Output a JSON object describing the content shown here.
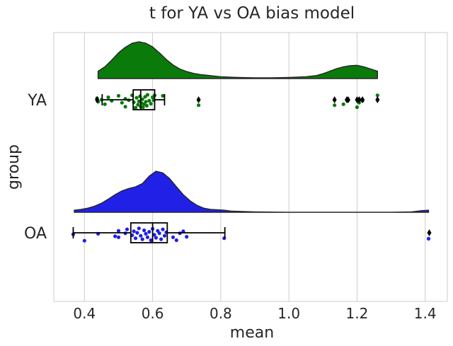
{
  "chart_data": {
    "type": "raincloud",
    "title": "t for YA vs OA bias model",
    "xlabel": "mean",
    "ylabel": "group",
    "xlim": [
      0.31,
      1.465
    ],
    "xticks": [
      0.4,
      0.6,
      0.8,
      1.0,
      1.2,
      1.4
    ],
    "xtick_labels": [
      "0.4",
      "0.6",
      "0.8",
      "1.0",
      "1.2",
      "1.4"
    ],
    "grid": "vertical",
    "groups": [
      {
        "name": "YA",
        "color": "#0a7a0a",
        "density_x": [
          0.44,
          0.46,
          0.48,
          0.5,
          0.52,
          0.54,
          0.56,
          0.58,
          0.6,
          0.62,
          0.64,
          0.66,
          0.68,
          0.7,
          0.72,
          0.74,
          0.76,
          0.78,
          0.8,
          0.85,
          0.9,
          0.95,
          1.0,
          1.05,
          1.08,
          1.1,
          1.12,
          1.14,
          1.16,
          1.18,
          1.2,
          1.22,
          1.24,
          1.26
        ],
        "density_y": [
          0.2,
          0.32,
          0.5,
          0.7,
          0.85,
          0.96,
          1.0,
          0.96,
          0.86,
          0.7,
          0.52,
          0.37,
          0.26,
          0.19,
          0.14,
          0.11,
          0.09,
          0.07,
          0.05,
          0.03,
          0.02,
          0.02,
          0.03,
          0.05,
          0.08,
          0.13,
          0.2,
          0.27,
          0.32,
          0.35,
          0.36,
          0.32,
          0.26,
          0.2
        ],
        "box": {
          "whisker_low": 0.452,
          "q1": 0.543,
          "median": 0.565,
          "q3": 0.606,
          "whisker_high": 0.635
        },
        "outliers": [
          0.437,
          0.735,
          1.134,
          1.17,
          1.174,
          1.2,
          1.206,
          1.216,
          1.26
        ],
        "points": [
          {
            "x": 0.437,
            "j": -0.3
          },
          {
            "x": 0.44,
            "j": 0.4
          },
          {
            "x": 0.45,
            "j": 0.0
          },
          {
            "x": 0.46,
            "j": 0.9
          },
          {
            "x": 0.47,
            "j": -0.5
          },
          {
            "x": 0.48,
            "j": 0.2
          },
          {
            "x": 0.5,
            "j": -0.8
          },
          {
            "x": 0.51,
            "j": 0.6
          },
          {
            "x": 0.52,
            "j": -0.2
          },
          {
            "x": 0.52,
            "j": 1.4
          },
          {
            "x": 0.53,
            "j": 0.1
          },
          {
            "x": 0.54,
            "j": -0.9
          },
          {
            "x": 0.545,
            "j": 0.5
          },
          {
            "x": 0.55,
            "j": 1.6
          },
          {
            "x": 0.553,
            "j": -0.4
          },
          {
            "x": 0.557,
            "j": 1.0
          },
          {
            "x": 0.56,
            "j": 0.3
          },
          {
            "x": 0.563,
            "j": -0.7
          },
          {
            "x": 0.565,
            "j": 1.4
          },
          {
            "x": 0.568,
            "j": 0.7
          },
          {
            "x": 0.57,
            "j": -0.1
          },
          {
            "x": 0.572,
            "j": 1.5
          },
          {
            "x": 0.575,
            "j": 0.9
          },
          {
            "x": 0.578,
            "j": -0.6
          },
          {
            "x": 0.58,
            "j": 0.4
          },
          {
            "x": 0.583,
            "j": 1.2
          },
          {
            "x": 0.585,
            "j": -1.0
          },
          {
            "x": 0.59,
            "j": 0.2
          },
          {
            "x": 0.595,
            "j": 0.8
          },
          {
            "x": 0.6,
            "j": -0.5
          },
          {
            "x": 0.603,
            "j": 0.1
          },
          {
            "x": 0.606,
            "j": -0.9
          },
          {
            "x": 0.63,
            "j": -0.8
          },
          {
            "x": 0.735,
            "j": 1.1
          },
          {
            "x": 0.735,
            "j": 0.0
          },
          {
            "x": 1.134,
            "j": 1.1
          },
          {
            "x": 1.16,
            "j": 0.9
          },
          {
            "x": 1.17,
            "j": 0.0
          },
          {
            "x": 1.174,
            "j": 0.1
          },
          {
            "x": 1.2,
            "j": 1.5
          },
          {
            "x": 1.206,
            "j": 0.6
          },
          {
            "x": 1.21,
            "j": 0.0
          },
          {
            "x": 1.216,
            "j": 0.2
          },
          {
            "x": 1.26,
            "j": -0.9
          }
        ]
      },
      {
        "name": "OA",
        "color": "#2020e6",
        "density_x": [
          0.37,
          0.39,
          0.41,
          0.43,
          0.45,
          0.47,
          0.49,
          0.51,
          0.53,
          0.55,
          0.57,
          0.59,
          0.61,
          0.63,
          0.65,
          0.67,
          0.69,
          0.71,
          0.73,
          0.75,
          0.77,
          0.79,
          0.81,
          0.83,
          0.86,
          0.9,
          1.0,
          1.1,
          1.2,
          1.3,
          1.36,
          1.39,
          1.41
        ],
        "density_y": [
          0.05,
          0.07,
          0.1,
          0.15,
          0.22,
          0.32,
          0.43,
          0.52,
          0.58,
          0.62,
          0.7,
          0.88,
          1.0,
          0.96,
          0.82,
          0.62,
          0.43,
          0.28,
          0.17,
          0.1,
          0.07,
          0.06,
          0.05,
          0.03,
          0.02,
          0.01,
          0.0,
          0.0,
          0.0,
          0.0,
          0.01,
          0.04,
          0.05
        ],
        "box": {
          "whisker_low": 0.367,
          "q1": 0.536,
          "median": 0.6,
          "q3": 0.643,
          "whisker_high": 0.812
        },
        "outliers": [
          1.412
        ],
        "points": [
          {
            "x": 0.367,
            "j": 0.3
          },
          {
            "x": 0.4,
            "j": 1.6
          },
          {
            "x": 0.44,
            "j": 0.2
          },
          {
            "x": 0.49,
            "j": 0.7
          },
          {
            "x": 0.5,
            "j": 0.9
          },
          {
            "x": 0.5,
            "j": -0.4
          },
          {
            "x": 0.52,
            "j": 0.1
          },
          {
            "x": 0.525,
            "j": -0.7
          },
          {
            "x": 0.54,
            "j": 0.5
          },
          {
            "x": 0.545,
            "j": -0.3
          },
          {
            "x": 0.55,
            "j": 1.1
          },
          {
            "x": 0.555,
            "j": 0.0
          },
          {
            "x": 0.56,
            "j": -0.9
          },
          {
            "x": 0.565,
            "j": 0.6
          },
          {
            "x": 0.57,
            "j": 1.3
          },
          {
            "x": 0.575,
            "j": -0.5
          },
          {
            "x": 0.58,
            "j": 0.2
          },
          {
            "x": 0.585,
            "j": 0.9
          },
          {
            "x": 0.59,
            "j": -0.2
          },
          {
            "x": 0.595,
            "j": 1.5
          },
          {
            "x": 0.6,
            "j": -0.8
          },
          {
            "x": 0.605,
            "j": 0.4
          },
          {
            "x": 0.61,
            "j": 1.0
          },
          {
            "x": 0.615,
            "j": -0.4
          },
          {
            "x": 0.62,
            "j": 0.1
          },
          {
            "x": 0.625,
            "j": 1.3
          },
          {
            "x": 0.63,
            "j": -0.7
          },
          {
            "x": 0.635,
            "j": 0.6
          },
          {
            "x": 0.64,
            "j": -0.1
          },
          {
            "x": 0.66,
            "j": 0.9
          },
          {
            "x": 0.67,
            "j": 1.5
          },
          {
            "x": 0.68,
            "j": 0.1
          },
          {
            "x": 0.69,
            "j": -0.3
          },
          {
            "x": 0.7,
            "j": 0.8
          },
          {
            "x": 0.81,
            "j": 1.1
          },
          {
            "x": 1.41,
            "j": 1.2
          }
        ]
      }
    ]
  }
}
